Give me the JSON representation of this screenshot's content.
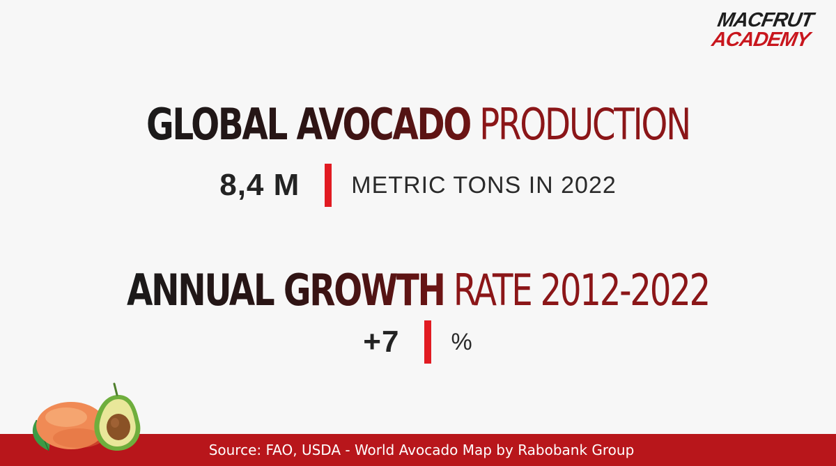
{
  "logo": {
    "line1": "MACFRUT",
    "line2": "ACADEMY"
  },
  "headline1": {
    "strong": "GLOBAL AVOCADO",
    "light": "PRODUCTION"
  },
  "stat1": {
    "value": "8,4 M",
    "unit": "METRIC TONS IN 2022"
  },
  "headline2": {
    "strong": "ANNUAL GROWTH",
    "light": "RATE 2012-2022"
  },
  "stat2": {
    "value": "+7",
    "unit": "%"
  },
  "footer": {
    "source": "Source: FAO, USDA - World Avocado Map by Rabobank Group"
  },
  "colors": {
    "brand_red": "#c8161d",
    "divider_red": "#e11b22",
    "footer_red": "#b8161b",
    "headline_dark": "#1a1a1a",
    "headline_red": "#8b1618",
    "background": "#f7f7f7"
  },
  "icons": {
    "fruit": "mango-avocado-illustration"
  }
}
